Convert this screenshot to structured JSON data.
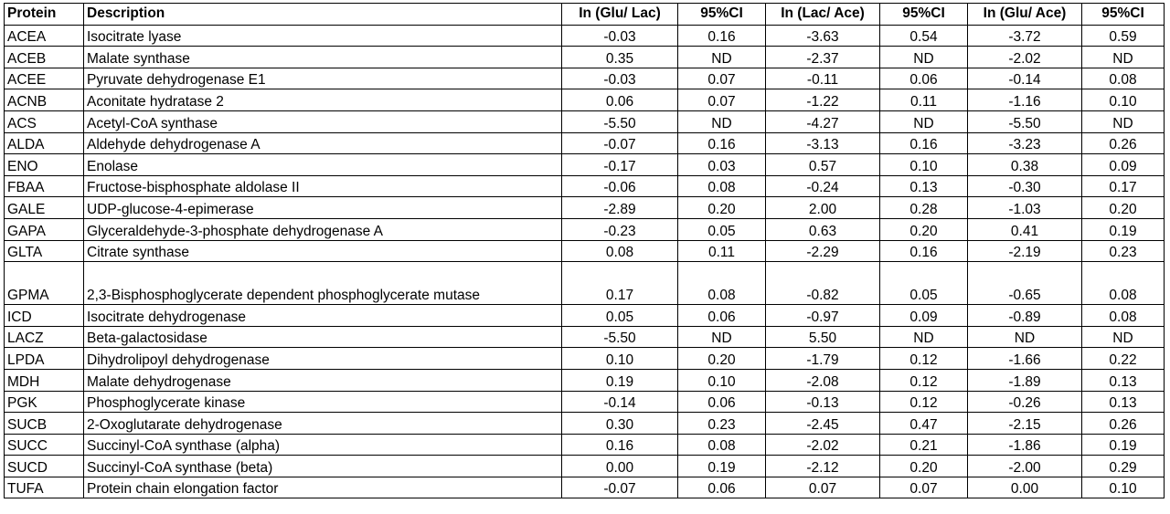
{
  "table": {
    "headers": [
      "Protein",
      "Description",
      "In (Glu/ Lac)",
      "95%CI",
      "In (Lac/ Ace)",
      "95%CI",
      "In (Glu/ Ace)",
      "95%CI"
    ],
    "rows": [
      [
        "ACEA",
        "Isocitrate lyase",
        "-0.03",
        "0.16",
        "-3.63",
        "0.54",
        "-3.72",
        "0.59"
      ],
      [
        "ACEB",
        "Malate synthase",
        "0.35",
        "ND",
        "-2.37",
        "ND",
        "-2.02",
        "ND"
      ],
      [
        "ACEE",
        "Pyruvate dehydrogenase E1",
        "-0.03",
        "0.07",
        "-0.11",
        "0.06",
        "-0.14",
        "0.08"
      ],
      [
        "ACNB",
        "Aconitate hydratase 2",
        "0.06",
        "0.07",
        "-1.22",
        "0.11",
        "-1.16",
        "0.10"
      ],
      [
        "ACS",
        "Acetyl-CoA synthase",
        "-5.50",
        "ND",
        "-4.27",
        "ND",
        "-5.50",
        "ND"
      ],
      [
        "ALDA",
        "Aldehyde dehydrogenase A",
        "-0.07",
        "0.16",
        "-3.13",
        "0.16",
        "-3.23",
        "0.26"
      ],
      [
        "ENO",
        "Enolase",
        "-0.17",
        "0.03",
        "0.57",
        "0.10",
        "0.38",
        "0.09"
      ],
      [
        "FBAA",
        "Fructose-bisphosphate aldolase II",
        "-0.06",
        "0.08",
        "-0.24",
        "0.13",
        "-0.30",
        "0.17"
      ],
      [
        "GALE",
        "UDP-glucose-4-epimerase",
        "-2.89",
        "0.20",
        "2.00",
        "0.28",
        "-1.03",
        "0.20"
      ],
      [
        "GAPA",
        "Glyceraldehyde-3-phosphate dehydrogenase A",
        "-0.23",
        "0.05",
        "0.63",
        "0.20",
        "0.41",
        "0.19"
      ],
      [
        "GLTA",
        "Citrate synthase",
        "0.08",
        "0.11",
        "-2.29",
        "0.16",
        "-2.19",
        "0.23"
      ],
      [
        "GPMA",
        "2,3-Bisphosphoglycerate dependent phosphoglycerate mutase",
        "0.17",
        "0.08",
        "-0.82",
        "0.05",
        "-0.65",
        "0.08"
      ],
      [
        "ICD",
        "Isocitrate dehydrogenase",
        "0.05",
        "0.06",
        "-0.97",
        "0.09",
        "-0.89",
        "0.08"
      ],
      [
        "LACZ",
        "Beta-galactosidase",
        "-5.50",
        "ND",
        "5.50",
        "ND",
        "ND",
        "ND"
      ],
      [
        "LPDA",
        "Dihydrolipoyl dehydrogenase",
        "0.10",
        "0.20",
        "-1.79",
        "0.12",
        "-1.66",
        "0.22"
      ],
      [
        "MDH",
        "Malate dehydrogenase",
        "0.19",
        "0.10",
        "-2.08",
        "0.12",
        "-1.89",
        "0.13"
      ],
      [
        "PGK",
        "Phosphoglycerate kinase",
        "-0.14",
        "0.06",
        "-0.13",
        "0.12",
        "-0.26",
        "0.13"
      ],
      [
        "SUCB",
        "2-Oxoglutarate dehydrogenase",
        "0.30",
        "0.23",
        "-2.45",
        "0.47",
        "-2.15",
        "0.26"
      ],
      [
        "SUCC",
        "Succinyl-CoA synthase (alpha)",
        "0.16",
        "0.08",
        "-2.02",
        "0.21",
        "-1.86",
        "0.19"
      ],
      [
        "SUCD",
        "Succinyl-CoA synthase (beta)",
        "0.00",
        "0.19",
        "-2.12",
        "0.20",
        "-2.00",
        "0.29"
      ],
      [
        "TUFA",
        "Protein chain elongation factor",
        "-0.07",
        "0.06",
        "0.07",
        "0.07",
        "0.00",
        "0.10"
      ]
    ]
  }
}
